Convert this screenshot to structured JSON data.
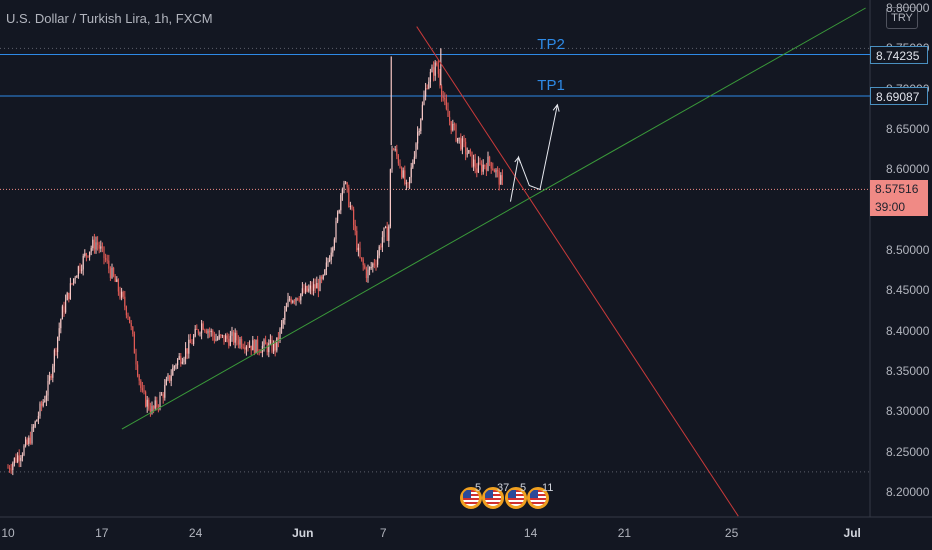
{
  "legend": {
    "title": "U.S. Dollar / Turkish Lira, 1h, FXCM"
  },
  "currency_button": "TRY",
  "chart_data": {
    "type": "candlestick",
    "title": "U.S. Dollar / Turkish Lira, 1h, FXCM",
    "ylim": [
      8.18,
      8.8
    ],
    "y_ticks": [
      "8.80000",
      "8.75000",
      "8.70000",
      "8.65000",
      "8.60000",
      "8.50000",
      "8.45000",
      "8.40000",
      "8.35000",
      "8.30000",
      "8.25000",
      "8.20000"
    ],
    "x_ticks": [
      {
        "label": "10",
        "bold": false
      },
      {
        "label": "17",
        "bold": false
      },
      {
        "label": "24",
        "bold": false
      },
      {
        "label": "Jun",
        "bold": true
      },
      {
        "label": "7",
        "bold": false
      },
      {
        "label": "14",
        "bold": false
      },
      {
        "label": "21",
        "bold": false
      },
      {
        "label": "25",
        "bold": false
      },
      {
        "label": "Jul",
        "bold": true
      }
    ],
    "price_keys": [
      {
        "day": 0,
        "v": 8.23
      },
      {
        "day": 1.5,
        "v": 8.26
      },
      {
        "day": 3,
        "v": 8.33
      },
      {
        "day": 4,
        "v": 8.42
      },
      {
        "day": 5,
        "v": 8.47
      },
      {
        "day": 6,
        "v": 8.5
      },
      {
        "day": 6.6,
        "v": 8.51
      },
      {
        "day": 7.2,
        "v": 8.49
      },
      {
        "day": 8,
        "v": 8.46
      },
      {
        "day": 9,
        "v": 8.42
      },
      {
        "day": 10,
        "v": 8.32
      },
      {
        "day": 10.8,
        "v": 8.3
      },
      {
        "day": 11.5,
        "v": 8.32
      },
      {
        "day": 12.5,
        "v": 8.36
      },
      {
        "day": 13.5,
        "v": 8.38
      },
      {
        "day": 14.5,
        "v": 8.41
      },
      {
        "day": 15.5,
        "v": 8.39
      },
      {
        "day": 17,
        "v": 8.39
      },
      {
        "day": 18.5,
        "v": 8.38
      },
      {
        "day": 20,
        "v": 8.38
      },
      {
        "day": 21,
        "v": 8.44
      },
      {
        "day": 22.5,
        "v": 8.45
      },
      {
        "day": 23.5,
        "v": 8.46
      },
      {
        "day": 24.5,
        "v": 8.53
      },
      {
        "day": 25,
        "v": 8.59
      },
      {
        "day": 25.6,
        "v": 8.55
      },
      {
        "day": 26.2,
        "v": 8.49
      },
      {
        "day": 26.8,
        "v": 8.47
      },
      {
        "day": 27.5,
        "v": 8.49
      },
      {
        "day": 28,
        "v": 8.52
      },
      {
        "day": 28.4,
        "v": 8.52
      },
      {
        "day": 28.6,
        "v": 8.63
      },
      {
        "day": 29.2,
        "v": 8.61
      },
      {
        "day": 29.8,
        "v": 8.57
      },
      {
        "day": 30.5,
        "v": 8.64
      },
      {
        "day": 31.3,
        "v": 8.71
      },
      {
        "day": 32,
        "v": 8.73
      },
      {
        "day": 32.7,
        "v": 8.67
      },
      {
        "day": 33.5,
        "v": 8.64
      },
      {
        "day": 34.3,
        "v": 8.62
      },
      {
        "day": 35,
        "v": 8.6
      },
      {
        "day": 36,
        "v": 8.61
      },
      {
        "day": 36.9,
        "v": 8.58
      }
    ],
    "high_marks": [
      {
        "day": 28.6,
        "v": 8.74
      },
      {
        "day": 32.3,
        "v": 8.75
      }
    ],
    "levels": [
      {
        "name": "TP2",
        "value": 8.74235,
        "label": "8.74235"
      },
      {
        "name": "TP1",
        "value": 8.69087,
        "label": "8.69087"
      }
    ],
    "current_price": {
      "value": 8.57516,
      "label": "8.57516",
      "timer": "39:00"
    },
    "dotted_levels": [
      8.75,
      8.225
    ],
    "trendlines": [
      {
        "name": "support",
        "color": "#3a9a3a",
        "from": {
          "day": 8.5,
          "v": 8.278
        },
        "to": {
          "day": 64,
          "v": 8.8
        }
      },
      {
        "name": "resistance",
        "color": "#c83a3a",
        "from": {
          "day": 30.5,
          "v": 8.777
        },
        "to": {
          "day": 54.5,
          "v": 8.17
        }
      }
    ],
    "projection": [
      {
        "day": 37.5,
        "v": 8.56
      },
      {
        "day": 38.1,
        "v": 8.615
      },
      {
        "day": 38.9,
        "v": 8.58
      },
      {
        "day": 39.7,
        "v": 8.575
      },
      {
        "day": 41,
        "v": 8.68
      }
    ],
    "events": [
      {
        "count": "5"
      },
      {
        "count": "37"
      },
      {
        "count": "5"
      },
      {
        "count": "11"
      }
    ]
  }
}
